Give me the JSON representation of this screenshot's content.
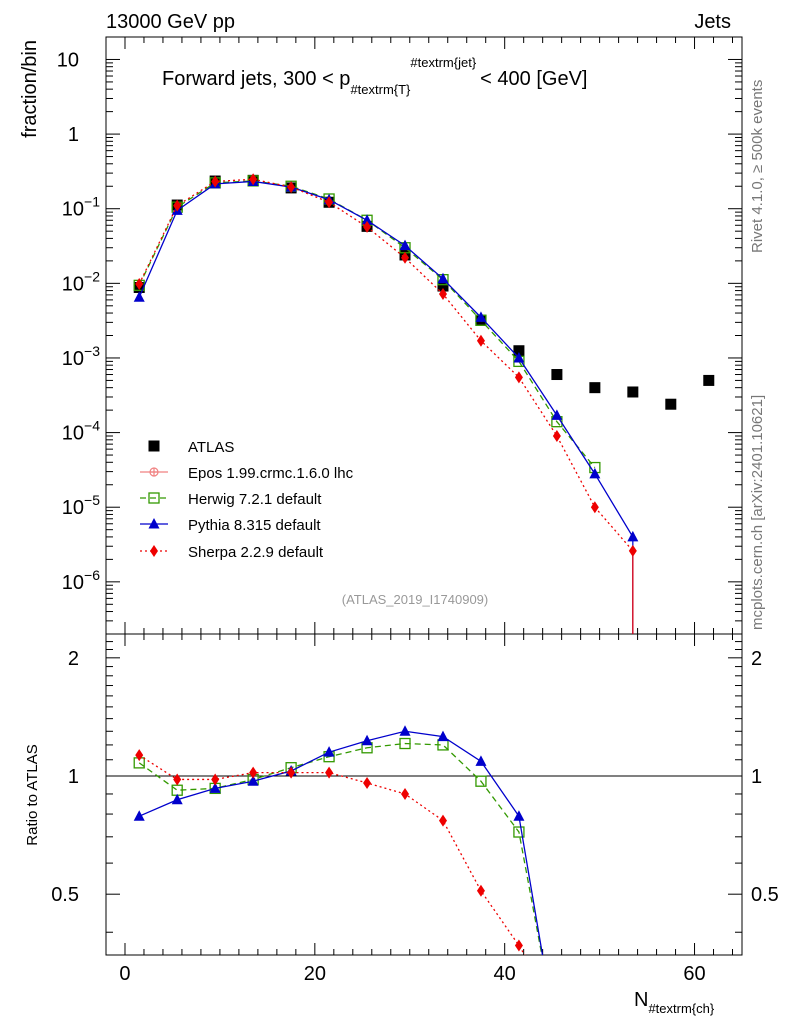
{
  "header": {
    "left": "13000 GeV pp",
    "right": "Jets",
    "side_top": "Rivet 4.1.0, ≥ 500k events",
    "side_bottom": "mcplots.cern.ch [arXiv:2401.10621]",
    "watermark": "(ATLAS_2019_I1740909)"
  },
  "chart_data": {
    "type": "scatter",
    "title": "Forward jets, 300 < p",
    "title_sub": "#textrm{T}",
    "title_sup": "#textrm{jet}",
    "title_end": "< 400 [GeV]",
    "xlabel": "N",
    "xlabel_sub": "#textrm{ch}",
    "ylabel": "fraction/bin",
    "ratio_ylabel": "Ratio to ATLAS",
    "xlim": [
      -2,
      65
    ],
    "ylim": [
      2e-07,
      20
    ],
    "ratio_ylim": [
      0.35,
      2.3
    ],
    "x_ticks": [
      0,
      20,
      40,
      60
    ],
    "x_tick_labels": [
      "0",
      "20",
      "40",
      "60"
    ],
    "y_ticks": [
      1e-06,
      1e-05,
      0.0001,
      0.001,
      0.01,
      0.1,
      1,
      10
    ],
    "y_tick_labels": [
      {
        "base": "10",
        "exp": "−6"
      },
      {
        "base": "10",
        "exp": "−5"
      },
      {
        "base": "10",
        "exp": "−4"
      },
      {
        "base": "10",
        "exp": "−3"
      },
      {
        "base": "10",
        "exp": "−2"
      },
      {
        "base": "10",
        "exp": "−1"
      },
      {
        "base": "1",
        "exp": ""
      },
      {
        "base": "10",
        "exp": ""
      }
    ],
    "ratio_ticks": [
      0.5,
      1,
      2
    ],
    "ratio_tick_labels": [
      "0.5",
      "1",
      "2"
    ],
    "series": [
      {
        "name": "ATLAS",
        "label": "ATLAS",
        "color": "#000000",
        "marker": "square",
        "dash": "",
        "x": [
          1.5,
          5.5,
          9.5,
          13.5,
          17.5,
          21.5,
          25.5,
          29.5,
          33.5,
          37.5,
          41.5,
          45.5,
          49.5,
          53.5,
          57.5,
          61.5
        ],
        "y": [
          0.0088,
          0.112,
          0.235,
          0.24,
          0.19,
          0.122,
          0.058,
          0.024,
          0.0092,
          0.0032,
          0.00125,
          0.0006,
          0.0004,
          0.00035,
          0.00024,
          0.0005
        ],
        "ratio": []
      },
      {
        "name": "Epos",
        "label": "Epos 1.99.crmc.1.6.0 lhc",
        "color": "#f08080",
        "marker": "cross",
        "dash": "",
        "x": [],
        "y": [],
        "ratio": []
      },
      {
        "name": "Herwig",
        "label": "Herwig 7.2.1 default",
        "color": "#339900",
        "marker": "open-square",
        "dash": "6,4",
        "x": [
          1.5,
          5.5,
          9.5,
          13.5,
          17.5,
          21.5,
          25.5,
          29.5,
          33.5,
          37.5,
          41.5,
          45.5,
          49.5
        ],
        "y": [
          0.0094,
          0.105,
          0.222,
          0.236,
          0.2,
          0.135,
          0.07,
          0.03,
          0.0112,
          0.0032,
          0.0009,
          0.00014,
          3.4e-05
        ],
        "ratio": [
          1.08,
          0.92,
          0.93,
          0.98,
          1.05,
          1.12,
          1.18,
          1.21,
          1.2,
          0.97,
          0.72,
          null,
          null
        ]
      },
      {
        "name": "Pythia",
        "label": "Pythia 8.315 default",
        "color": "#0000cc",
        "marker": "triangle",
        "dash": "",
        "x": [
          1.5,
          5.5,
          9.5,
          13.5,
          17.5,
          21.5,
          25.5,
          29.5,
          33.5,
          37.5,
          41.5,
          45.5,
          49.5,
          53.5
        ],
        "y": [
          0.0065,
          0.095,
          0.215,
          0.232,
          0.195,
          0.132,
          0.07,
          0.032,
          0.0115,
          0.0035,
          0.001,
          0.00017,
          2.8e-05,
          4e-06
        ],
        "ratio": [
          0.79,
          0.87,
          0.93,
          0.97,
          1.03,
          1.15,
          1.23,
          1.3,
          1.26,
          1.09,
          0.79,
          null,
          null,
          null
        ]
      },
      {
        "name": "Sherpa",
        "label": "Sherpa 2.2.9 default",
        "color": "#ee0000",
        "marker": "diamond",
        "dash": "2,3",
        "x": [
          1.5,
          5.5,
          9.5,
          13.5,
          17.5,
          21.5,
          25.5,
          29.5,
          33.5,
          37.5,
          41.5,
          45.5,
          49.5,
          53.5
        ],
        "y": [
          0.0098,
          0.11,
          0.232,
          0.248,
          0.195,
          0.122,
          0.057,
          0.022,
          0.0072,
          0.0017,
          0.00055,
          9e-05,
          1e-05,
          2.6e-06
        ],
        "ratio": [
          1.13,
          0.98,
          0.98,
          1.02,
          1.02,
          1.02,
          0.96,
          0.9,
          0.77,
          0.51,
          0.37,
          null,
          null,
          null
        ]
      }
    ]
  }
}
